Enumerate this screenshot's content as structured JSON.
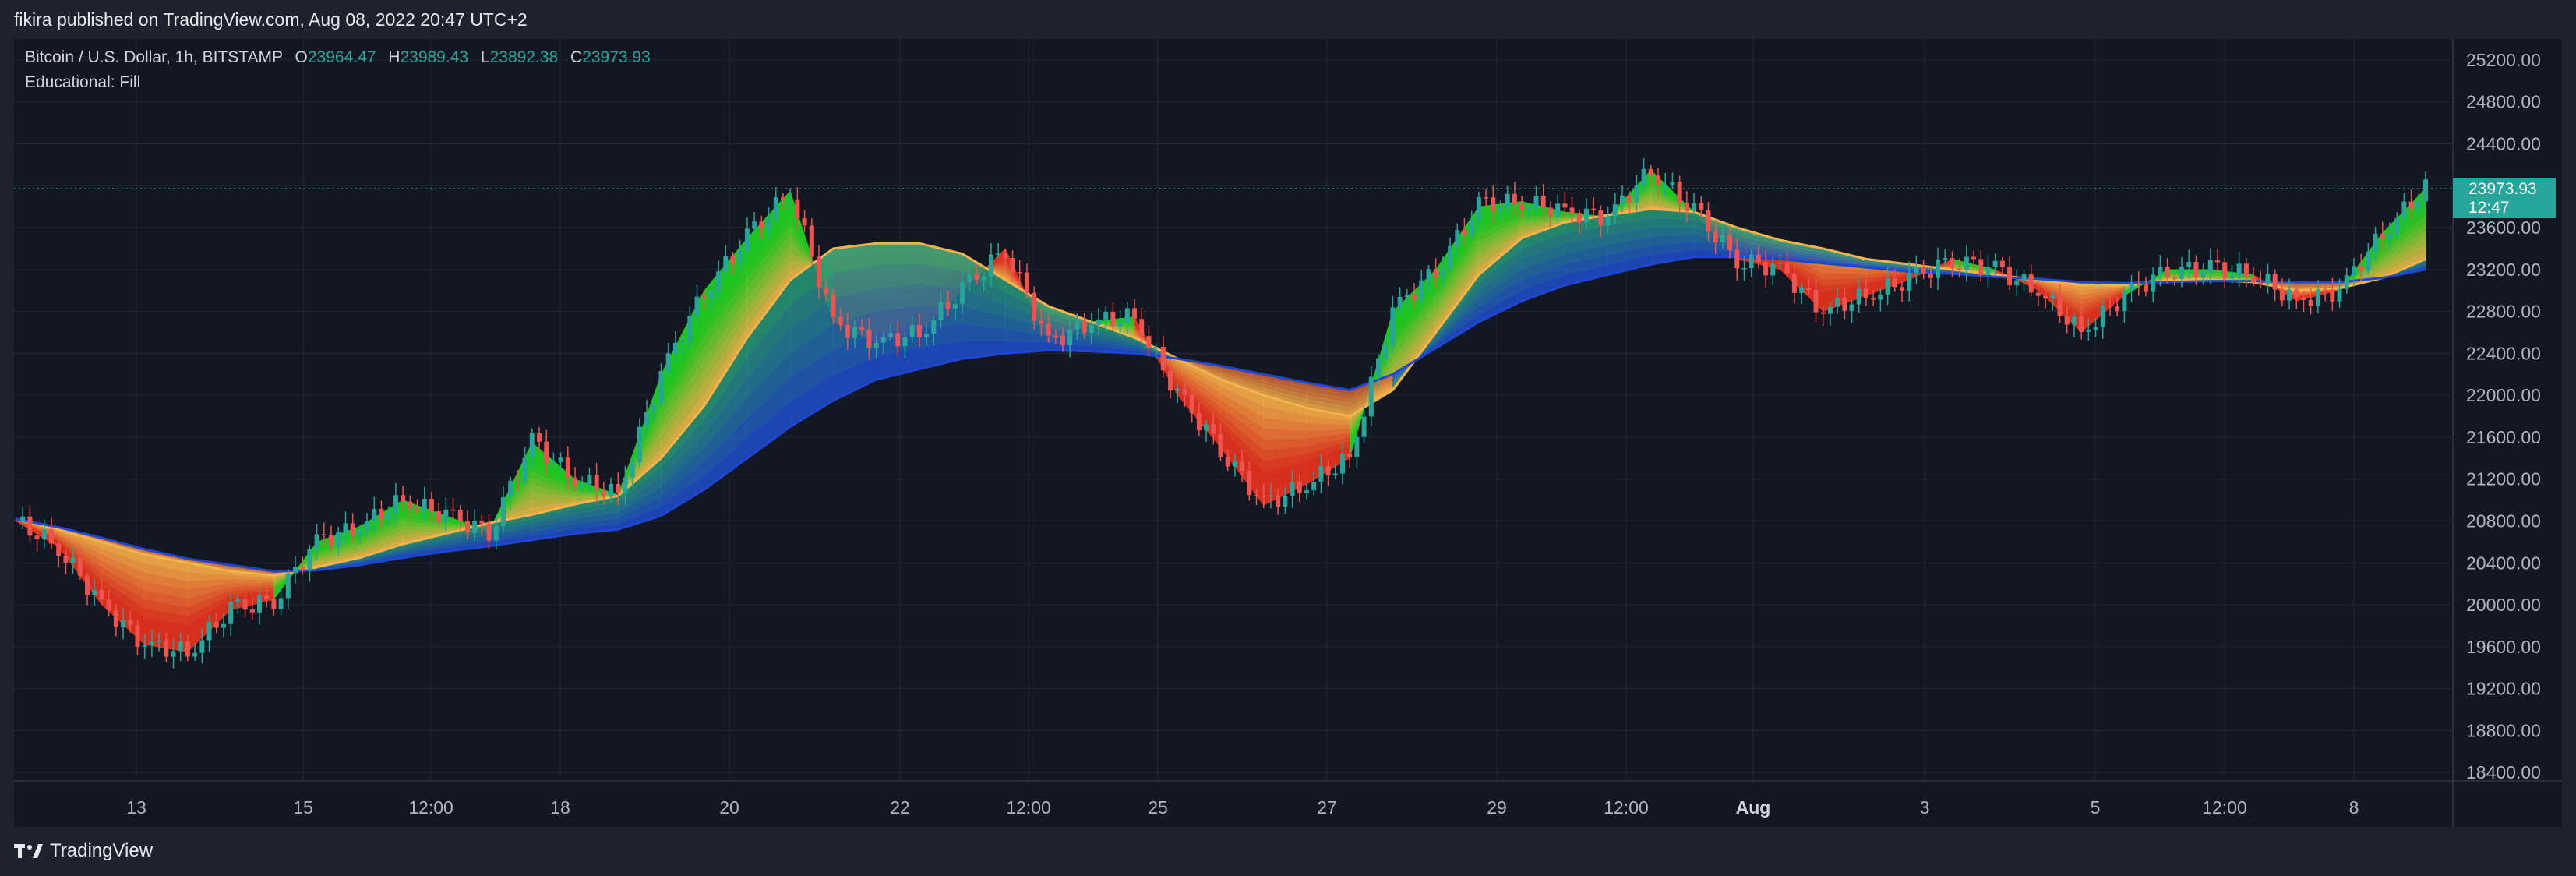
{
  "header": {
    "published_text": "fikira published on TradingView.com, Aug 08, 2022 20:47 UTC+2"
  },
  "legend": {
    "symbol": "Bitcoin / U.S. Dollar, 1h, BITSTAMP",
    "open_label": "O",
    "open": "23964.47",
    "high_label": "H",
    "high": "23989.43",
    "low_label": "L",
    "low": "23892.38",
    "close_label": "C",
    "close": "23973.93",
    "indicator": "Educational: Fill"
  },
  "price_badge": {
    "price": "23973.93",
    "countdown": "12:47"
  },
  "footer": {
    "brand": "TradingView",
    "logo_icon": "tradingview-logo-icon"
  },
  "colors": {
    "background": "#131722",
    "frame": "#1e222d",
    "grid": "#232733",
    "up": "#26a69a",
    "down": "#ef5350",
    "axis_text": "#b2b5be",
    "fill_bull": "#1ed21e",
    "fill_bear": "#e6321e",
    "ma_fast": "#f5b44b",
    "ma_slow": "#1e46d2"
  },
  "chart_data": {
    "type": "candlestick",
    "title": "Bitcoin / U.S. Dollar, 1h, BITSTAMP",
    "x_tick_labels": [
      "13",
      "15",
      "12:00",
      "18",
      "20",
      "22",
      "12:00",
      "25",
      "27",
      "29",
      "12:00",
      "Aug",
      "3",
      "5",
      "12:00",
      "8"
    ],
    "y_tick_labels": [
      "25200.00",
      "24800.00",
      "24400.00",
      "24000.00",
      "23600.00",
      "23200.00",
      "22800.00",
      "22400.00",
      "22000.00",
      "21600.00",
      "21200.00",
      "20800.00",
      "20400.00",
      "20000.00",
      "19600.00",
      "19200.00",
      "18800.00",
      "18400.00"
    ],
    "ylim": [
      18320,
      25400
    ],
    "last_price": 23973.93,
    "grid": true,
    "series": [
      {
        "name": "Price",
        "x": [
          "Jul 12 00:00",
          "Jul 12 12:00",
          "Jul 13 00:00",
          "Jul 13 12:00",
          "Jul 14 00:00",
          "Jul 14 12:00",
          "Jul 15 00:00",
          "Jul 15 12:00",
          "Jul 16 00:00",
          "Jul 16 12:00",
          "Jul 17 00:00",
          "Jul 17 12:00",
          "Jul 18 00:00",
          "Jul 18 12:00",
          "Jul 19 00:00",
          "Jul 19 12:00",
          "Jul 20 00:00",
          "Jul 20 12:00",
          "Jul 21 00:00",
          "Jul 21 12:00",
          "Jul 22 00:00",
          "Jul 22 12:00",
          "Jul 23 00:00",
          "Jul 23 12:00",
          "Jul 24 00:00",
          "Jul 24 12:00",
          "Jul 25 00:00",
          "Jul 25 12:00",
          "Jul 26 00:00",
          "Jul 26 12:00",
          "Jul 27 00:00",
          "Jul 27 12:00",
          "Jul 28 00:00",
          "Jul 28 12:00",
          "Jul 29 00:00",
          "Jul 29 12:00",
          "Jul 30 00:00",
          "Jul 30 12:00",
          "Jul 31 00:00",
          "Jul 31 12:00",
          "Aug 01 00:00",
          "Aug 01 12:00",
          "Aug 02 00:00",
          "Aug 02 12:00",
          "Aug 03 00:00",
          "Aug 03 12:00",
          "Aug 04 00:00",
          "Aug 04 12:00",
          "Aug 05 00:00",
          "Aug 05 12:00",
          "Aug 06 00:00",
          "Aug 06 12:00",
          "Aug 07 00:00",
          "Aug 07 12:00",
          "Aug 08 00:00",
          "Aug 08 12:00",
          "Aug 08 20:00"
        ],
        "close": [
          20800,
          20550,
          20000,
          19620,
          19550,
          19950,
          20050,
          20600,
          20750,
          21000,
          20850,
          20700,
          21550,
          21200,
          21050,
          22200,
          23000,
          23500,
          23950,
          22700,
          22500,
          22600,
          23000,
          23400,
          22500,
          22700,
          22750,
          22000,
          21500,
          20950,
          21150,
          21400,
          22800,
          23200,
          23800,
          23850,
          23750,
          23700,
          24150,
          23750,
          23300,
          23200,
          22800,
          22950,
          23100,
          23300,
          23200,
          23000,
          22600,
          22950,
          23200,
          23200,
          23150,
          22900,
          23000,
          23550,
          23973.93
        ]
      },
      {
        "name": "Fast average",
        "values": [
          20820,
          20720,
          20600,
          20480,
          20400,
          20320,
          20280,
          20360,
          20450,
          20580,
          20680,
          20780,
          20860,
          20960,
          21040,
          21400,
          21900,
          22550,
          23100,
          23400,
          23450,
          23450,
          23350,
          23100,
          22850,
          22700,
          22550,
          22350,
          22150,
          22000,
          21880,
          21800,
          22050,
          22600,
          23150,
          23500,
          23650,
          23720,
          23780,
          23750,
          23600,
          23480,
          23400,
          23300,
          23250,
          23200,
          23150,
          23100,
          23050,
          23050,
          23100,
          23100,
          23080,
          23000,
          23020,
          23120,
          23300
        ]
      },
      {
        "name": "Slow average",
        "values": [
          20820,
          20740,
          20640,
          20530,
          20440,
          20380,
          20320,
          20330,
          20380,
          20450,
          20510,
          20560,
          20620,
          20680,
          20720,
          20850,
          21100,
          21400,
          21700,
          21950,
          22150,
          22250,
          22350,
          22400,
          22430,
          22420,
          22400,
          22350,
          22280,
          22200,
          22120,
          22050,
          22200,
          22450,
          22700,
          22900,
          23050,
          23150,
          23250,
          23320,
          23320,
          23300,
          23260,
          23220,
          23180,
          23160,
          23130,
          23110,
          23080,
          23070,
          23080,
          23090,
          23090,
          23080,
          23080,
          23120,
          23200
        ]
      }
    ]
  }
}
